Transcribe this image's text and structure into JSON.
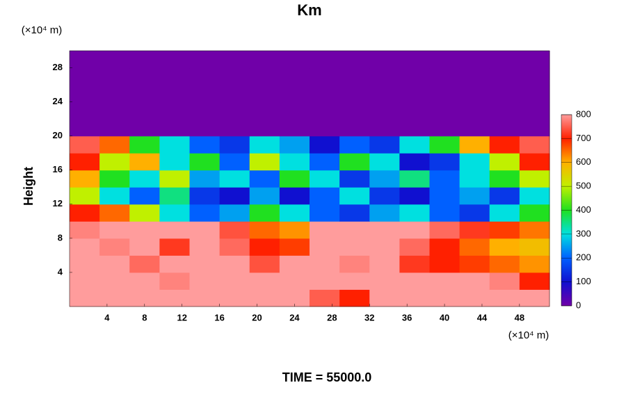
{
  "chart_data": {
    "type": "heatmap",
    "title": "Km",
    "ylabel": "Height",
    "ylabel_unit": "(×10⁴ m)",
    "xlabel_unit": "(×10⁴ m)",
    "footer": "TIME = 55000.0",
    "xlim": [
      0,
      51.2
    ],
    "ylim": [
      0,
      30
    ],
    "xticks": [
      4,
      8,
      12,
      16,
      20,
      24,
      28,
      32,
      36,
      40,
      44,
      48
    ],
    "yticks": [
      4,
      8,
      12,
      16,
      20,
      24,
      28
    ],
    "x": [
      1.6,
      4.8,
      8,
      11.2,
      14.4,
      17.6,
      20.8,
      24,
      27.2,
      30.4,
      33.6,
      36.8,
      40,
      43.2,
      46.4,
      49.6
    ],
    "y": [
      1,
      3,
      5,
      7,
      9,
      11,
      13,
      15,
      17,
      19,
      21,
      23,
      25,
      27,
      29
    ],
    "z": [
      [
        800,
        800,
        800,
        800,
        800,
        800,
        800,
        800,
        750,
        700,
        800,
        800,
        800,
        800,
        800,
        800
      ],
      [
        800,
        800,
        800,
        780,
        800,
        800,
        800,
        800,
        800,
        800,
        800,
        800,
        800,
        800,
        780,
        700
      ],
      [
        800,
        800,
        760,
        800,
        800,
        800,
        740,
        800,
        800,
        780,
        800,
        720,
        700,
        680,
        650,
        620
      ],
      [
        800,
        780,
        800,
        720,
        800,
        760,
        700,
        680,
        800,
        800,
        800,
        760,
        700,
        650,
        600,
        580
      ],
      [
        780,
        800,
        800,
        800,
        800,
        740,
        650,
        620,
        800,
        800,
        800,
        800,
        760,
        720,
        680,
        640
      ],
      [
        700,
        650,
        500,
        300,
        200,
        250,
        400,
        300,
        200,
        150,
        250,
        300,
        200,
        150,
        300,
        400
      ],
      [
        500,
        300,
        200,
        350,
        150,
        100,
        250,
        100,
        200,
        300,
        150,
        100,
        200,
        250,
        150,
        300
      ],
      [
        600,
        400,
        300,
        500,
        250,
        300,
        200,
        400,
        300,
        150,
        250,
        350,
        200,
        300,
        400,
        500
      ],
      [
        700,
        500,
        600,
        300,
        400,
        200,
        500,
        300,
        200,
        400,
        300,
        100,
        150,
        300,
        500,
        700
      ],
      [
        750,
        650,
        400,
        300,
        200,
        150,
        300,
        250,
        100,
        200,
        150,
        300,
        400,
        600,
        700,
        750
      ],
      [
        0,
        0,
        0,
        0,
        0,
        0,
        0,
        0,
        0,
        0,
        0,
        0,
        0,
        0,
        0,
        0
      ],
      [
        0,
        0,
        0,
        0,
        0,
        0,
        0,
        0,
        0,
        0,
        0,
        0,
        0,
        0,
        0,
        0
      ],
      [
        0,
        0,
        0,
        0,
        0,
        0,
        0,
        0,
        0,
        0,
        0,
        0,
        0,
        0,
        0,
        0
      ],
      [
        0,
        0,
        0,
        0,
        0,
        0,
        0,
        0,
        0,
        0,
        0,
        0,
        0,
        0,
        0,
        0
      ],
      [
        0,
        0,
        0,
        0,
        0,
        0,
        0,
        0,
        0,
        0,
        0,
        0,
        0,
        0,
        0,
        0
      ]
    ],
    "colorbar": {
      "ticks": [
        0,
        100,
        200,
        300,
        400,
        500,
        600,
        700,
        800
      ],
      "colors": [
        "#7000a8",
        "#1010d0",
        "#0060ff",
        "#00e0e0",
        "#20e020",
        "#c0f000",
        "#ffb000",
        "#ff2000",
        "#ff9c9c"
      ]
    }
  }
}
